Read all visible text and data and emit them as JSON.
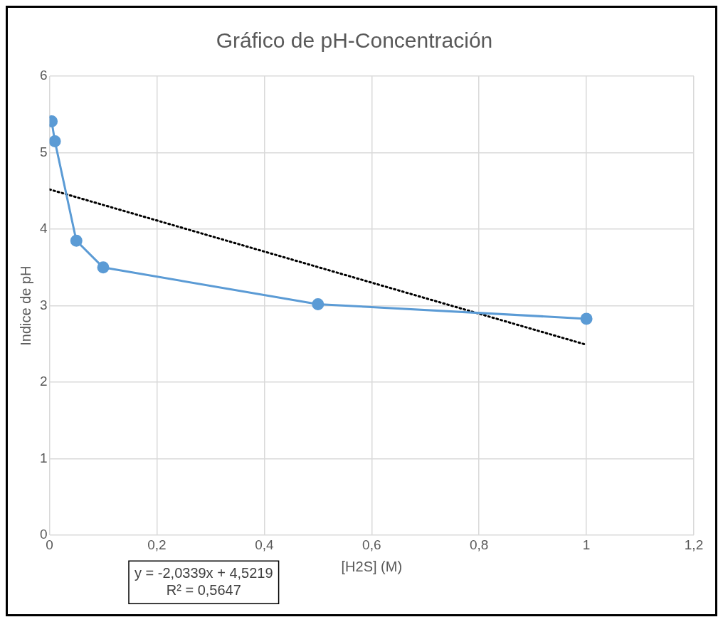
{
  "chart_data": {
    "type": "line",
    "title": "Gráfico de pH-Concentración",
    "xlabel": "[H2S] (M)",
    "ylabel": "Indice de pH",
    "series": [
      {
        "color": "#5b9bd5",
        "x": [
          0.004,
          0.01,
          0.05,
          0.1,
          0.5,
          1
        ],
        "values": [
          5.41,
          5.15,
          3.85,
          3.5,
          3.02,
          2.83
        ],
        "marker": "circle",
        "line_style": "solid"
      },
      {
        "type": "line",
        "color": "#000000",
        "x": [
          0,
          1
        ],
        "values": [
          4.52,
          2.49
        ],
        "marker": "none",
        "line_style": "dotted"
      }
    ],
    "xlim": [
      0,
      1.2
    ],
    "xticks": [
      0,
      {
        "value": 0.2,
        "label": "0,2"
      },
      {
        "value": 0.4,
        "label": "0,4"
      },
      {
        "value": 0.6,
        "label": "0,6"
      },
      {
        "value": 0.8,
        "label": "0,8"
      },
      1,
      {
        "value": 1.2,
        "label": "1,2"
      }
    ],
    "ylim": [
      0,
      6
    ],
    "yticks": [
      0,
      1,
      2,
      3,
      4,
      5,
      6
    ],
    "grid": true,
    "legend": false,
    "annotations": [
      "y = -2,0339x + 4,5219",
      "R² = 0,5647"
    ]
  }
}
